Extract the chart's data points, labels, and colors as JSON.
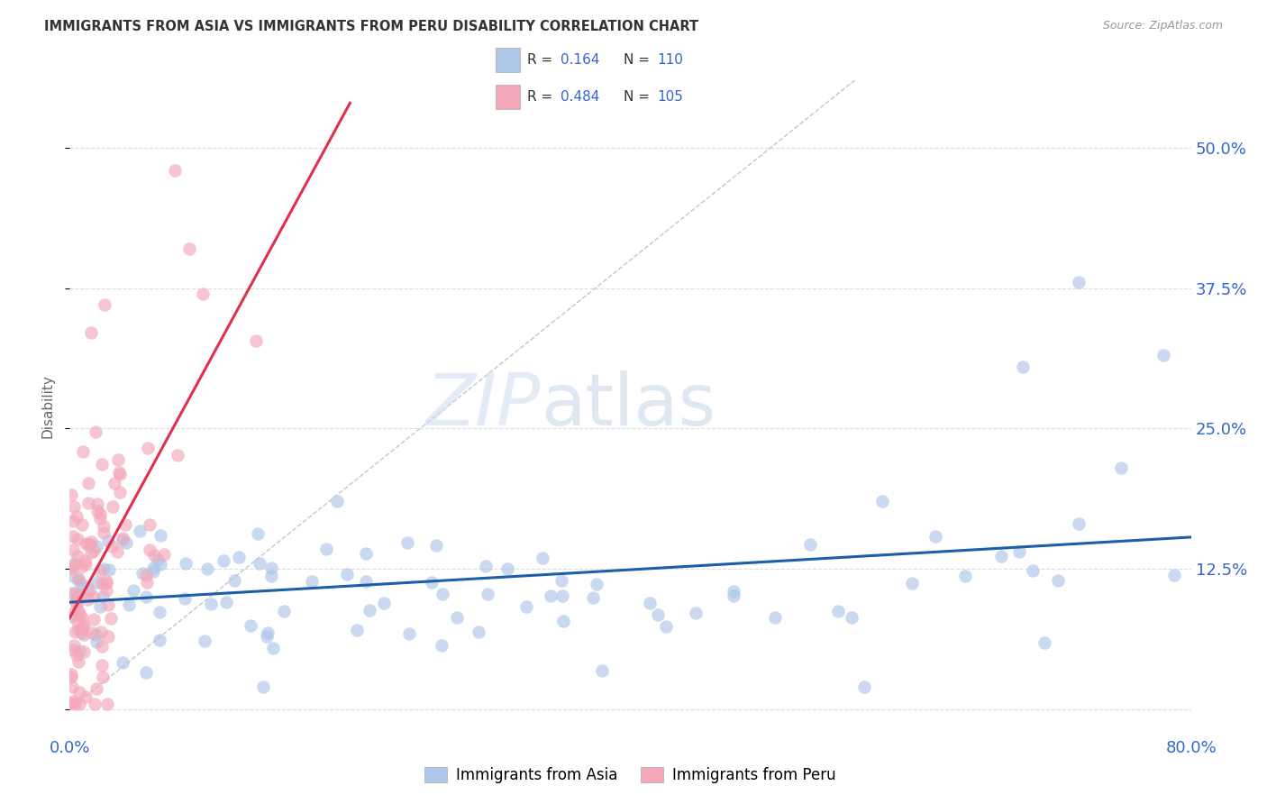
{
  "title": "IMMIGRANTS FROM ASIA VS IMMIGRANTS FROM PERU DISABILITY CORRELATION CHART",
  "source": "Source: ZipAtlas.com",
  "ylabel": "Disability",
  "xlim": [
    0.0,
    0.8
  ],
  "ylim": [
    -0.02,
    0.56
  ],
  "plot_ylim": [
    -0.02,
    0.56
  ],
  "xticks": [
    0.0,
    0.2,
    0.4,
    0.6,
    0.8
  ],
  "xtick_labels": [
    "0.0%",
    "",
    "",
    "",
    "80.0%"
  ],
  "yticks": [
    0.0,
    0.125,
    0.25,
    0.375,
    0.5
  ],
  "ytick_labels_right": [
    "",
    "12.5%",
    "25.0%",
    "37.5%",
    "50.0%"
  ],
  "legend_label1": "Immigrants from Asia",
  "legend_label2": "Immigrants from Peru",
  "color_asia": "#aec6e8",
  "color_peru": "#f4a7b9",
  "line_color_asia": "#1a5fa8",
  "line_color_peru": "#e0304e",
  "watermark_zip": "ZIP",
  "watermark_atlas": "atlas",
  "R_asia": 0.164,
  "N_asia": 110,
  "R_peru": 0.484,
  "N_peru": 105,
  "seed": 99
}
